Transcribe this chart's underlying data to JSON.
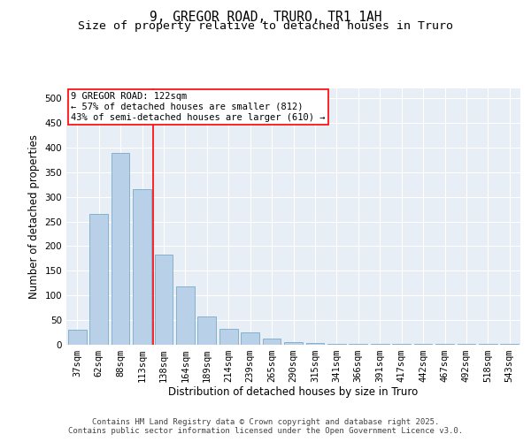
{
  "title_line1": "9, GREGOR ROAD, TRURO, TR1 1AH",
  "title_line2": "Size of property relative to detached houses in Truro",
  "xlabel": "Distribution of detached houses by size in Truro",
  "ylabel": "Number of detached properties",
  "categories": [
    "37sqm",
    "62sqm",
    "88sqm",
    "113sqm",
    "138sqm",
    "164sqm",
    "189sqm",
    "214sqm",
    "239sqm",
    "265sqm",
    "290sqm",
    "315sqm",
    "341sqm",
    "366sqm",
    "391sqm",
    "417sqm",
    "442sqm",
    "467sqm",
    "492sqm",
    "518sqm",
    "543sqm"
  ],
  "values": [
    30,
    265,
    390,
    315,
    183,
    118,
    58,
    33,
    25,
    13,
    5,
    3,
    2,
    1,
    1,
    1,
    1,
    1,
    1,
    1,
    2
  ],
  "bar_color": "#b8d0e8",
  "bar_edge_color": "#7aaac8",
  "bg_color": "#e8eef5",
  "grid_color": "#ffffff",
  "vline_x": 3.5,
  "vline_color": "red",
  "annotation_text": "9 GREGOR ROAD: 122sqm\n← 57% of detached houses are smaller (812)\n43% of semi-detached houses are larger (610) →",
  "annotation_box_color": "red",
  "ylim": [
    0,
    520
  ],
  "yticks": [
    0,
    50,
    100,
    150,
    200,
    250,
    300,
    350,
    400,
    450,
    500
  ],
  "footer_text": "Contains HM Land Registry data © Crown copyright and database right 2025.\nContains public sector information licensed under the Open Government Licence v3.0.",
  "title_fontsize": 10.5,
  "subtitle_fontsize": 9.5,
  "label_fontsize": 8.5,
  "tick_fontsize": 7.5,
  "footer_fontsize": 6.5,
  "ann_fontsize": 7.5
}
